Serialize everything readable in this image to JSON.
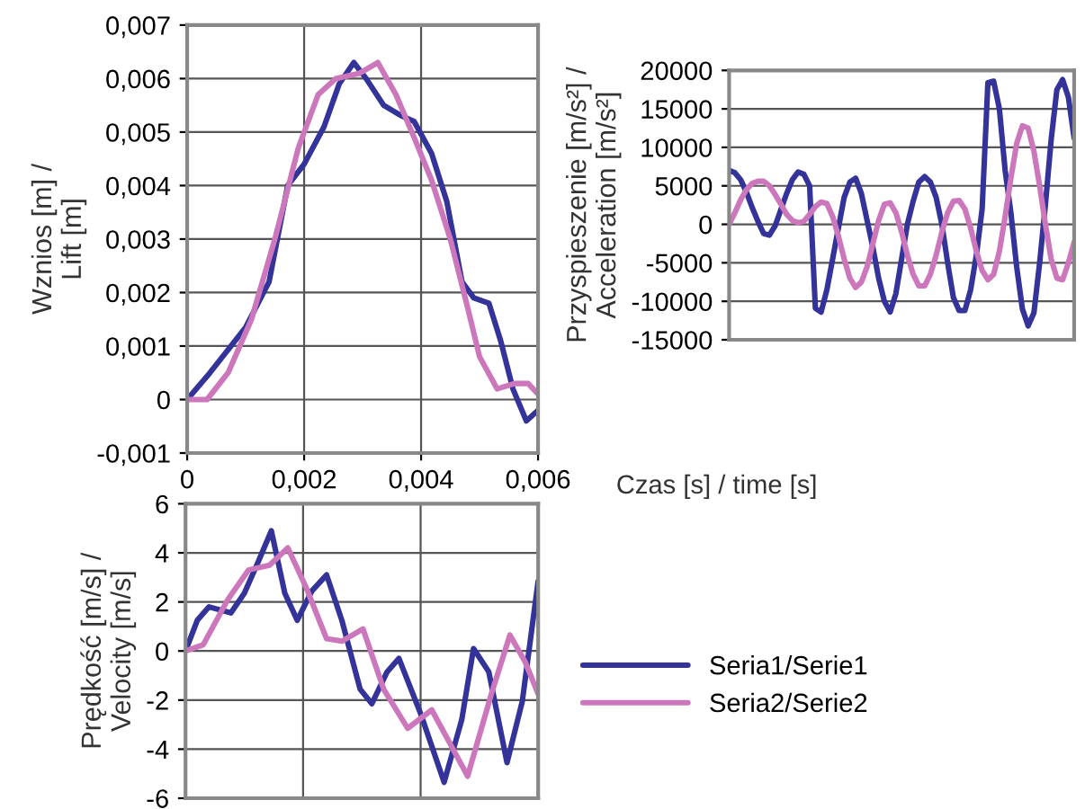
{
  "chart_data": [
    {
      "type": "line",
      "ylabel": "Wznios [m] /\nLift [m]",
      "grid": true,
      "xlim": [
        0,
        0.006
      ],
      "xticks": [
        0,
        {
          "value": 0.002,
          "label": "0,002"
        },
        {
          "value": 0.004,
          "label": "0,004"
        },
        {
          "value": 0.006,
          "label": "0,006"
        }
      ],
      "ylim": [
        -0.001,
        0.007
      ],
      "yticks": [
        {
          "value": -0.001,
          "label": "-0,001"
        },
        0,
        {
          "value": 0.001,
          "label": "0,001"
        },
        {
          "value": 0.002,
          "label": "0,002"
        },
        {
          "value": 0.003,
          "label": "0,003"
        },
        {
          "value": 0.004,
          "label": "0,004"
        },
        {
          "value": 0.005,
          "label": "0,005"
        },
        {
          "value": 0.006,
          "label": "0,006"
        },
        {
          "value": 0.007,
          "label": "0,007"
        }
      ],
      "series": [
        {
          "color": "#333399",
          "x": [
            0,
            0.00039,
            0.001,
            0.0014,
            0.00172,
            0.002,
            0.00234,
            0.0026,
            0.00285,
            0.00306,
            0.00336,
            0.00367,
            0.00388,
            0.00418,
            0.00444,
            0.0047,
            0.0049,
            0.00516,
            0.00536,
            0.00557,
            0.0058,
            0.006
          ],
          "values": [
            0,
            0.0005,
            0.00135,
            0.0022,
            0.004,
            0.0044,
            0.0051,
            0.0059,
            0.0063,
            0.006,
            0.0055,
            0.0053,
            0.0052,
            0.0046,
            0.0037,
            0.0022,
            0.0019,
            0.0018,
            0.0011,
            0.0002,
            -0.0004,
            -0.0002
          ]
        },
        {
          "color": "#cc77bb",
          "x": [
            0,
            0.00034,
            0.0007,
            0.0011,
            0.0015,
            0.0019,
            0.00224,
            0.00254,
            0.00295,
            0.00326,
            0.00357,
            0.00388,
            0.00418,
            0.0045,
            0.0048,
            0.005,
            0.0053,
            0.0056,
            0.00583,
            0.006
          ],
          "values": [
            0,
            0,
            0.0005,
            0.0015,
            0.003,
            0.0047,
            0.0057,
            0.006,
            0.0061,
            0.0063,
            0.0057,
            0.0049,
            0.0041,
            0.003,
            0.0017,
            0.0008,
            0.0002,
            0.0003,
            0.0003,
            0.0001
          ]
        }
      ]
    },
    {
      "type": "line",
      "xlabel": "Czas [s] / time [s]",
      "ylabel": "Przyspieszenie [m/s²] /\nAcceleration [m/s²]",
      "grid": "y",
      "tick_labels": "y",
      "categories": [
        null,
        null,
        null,
        null,
        null,
        null,
        null,
        null,
        null,
        null,
        null,
        null,
        null,
        null,
        null,
        null,
        null,
        null,
        null,
        null,
        null,
        null,
        null,
        null,
        null,
        null,
        null,
        null,
        null,
        null,
        null,
        null,
        null,
        null,
        null,
        null,
        null,
        null,
        null,
        null,
        null,
        null,
        null,
        null,
        null,
        null,
        null,
        null,
        null,
        null,
        null,
        null,
        null,
        null,
        null,
        null,
        null,
        null,
        null,
        null,
        null
      ],
      "ylim": [
        -15000,
        20000
      ],
      "yticks": [
        -15000,
        -10000,
        -5000,
        0,
        5000,
        10000,
        15000,
        20000
      ],
      "series": [
        {
          "color": "#333399",
          "values": [
            7000,
            6700,
            5800,
            4200,
            2200,
            400,
            -1200,
            -1400,
            -200,
            1900,
            4000,
            5800,
            6800,
            6500,
            5000,
            -10900,
            -11400,
            -8500,
            -4500,
            -500,
            3500,
            5500,
            6000,
            4000,
            500,
            -3000,
            -7000,
            -10000,
            -11400,
            -9000,
            -4500,
            0,
            3000,
            5500,
            6200,
            5500,
            3500,
            0,
            -5000,
            -9500,
            -11200,
            -11200,
            -8500,
            -4000,
            2000,
            18400,
            18600,
            15000,
            7000,
            1500,
            -5500,
            -11000,
            -13200,
            -11500,
            -5000,
            2500,
            11000,
            17500,
            18800,
            16500,
            11200
          ]
        },
        {
          "color": "#cc77bb",
          "values": [
            0,
            1500,
            3200,
            4500,
            5300,
            5600,
            5600,
            5000,
            3900,
            2600,
            1300,
            500,
            200,
            400,
            1300,
            2300,
            2900,
            2700,
            1000,
            -1500,
            -4500,
            -7000,
            -8200,
            -7500,
            -5500,
            -2500,
            500,
            2600,
            2800,
            1500,
            -1000,
            -4000,
            -6500,
            -8000,
            -8000,
            -6500,
            -4000,
            -1000,
            1500,
            3000,
            3100,
            2000,
            -500,
            -3500,
            -6000,
            -7200,
            -6500,
            -3500,
            1000,
            6000,
            10500,
            12800,
            12500,
            9500,
            5000,
            0,
            -4500,
            -7000,
            -7200,
            -5000,
            -2300
          ]
        }
      ]
    },
    {
      "type": "line",
      "ylabel": "Prędkość [m/s] /\nVelocity [m/s]",
      "grid": true,
      "tick_labels": "y",
      "legend": "right",
      "xlim": [
        0,
        0.006
      ],
      "xticks": [
        {
          "value": 0,
          "label": null
        },
        {
          "value": 0.002,
          "label": null
        },
        {
          "value": 0.004,
          "label": null
        },
        {
          "value": 0.006,
          "label": null
        }
      ],
      "ylim": [
        -6,
        6
      ],
      "yticks": [
        -6,
        -4,
        -2,
        0,
        2,
        4,
        6
      ],
      "series": [
        {
          "name": "Seria1/Serie1",
          "color": "#333399",
          "x": [
            0,
            0.0002,
            0.0004,
            0.00077,
            0.001,
            0.00123,
            0.00146,
            0.00169,
            0.0019,
            0.00215,
            0.0024,
            0.00266,
            0.00297,
            0.00317,
            0.00343,
            0.00363,
            0.004,
            0.0044,
            0.0047,
            0.0049,
            0.00516,
            0.00547,
            0.00573,
            0.006
          ],
          "values": [
            0,
            1.25,
            1.8,
            1.55,
            2.35,
            3.6,
            4.9,
            2.35,
            1.25,
            2.45,
            3.1,
            1.25,
            -1.55,
            -2.15,
            -0.85,
            -0.3,
            -2.55,
            -5.35,
            -2.8,
            0.1,
            -0.85,
            -4.55,
            -2.05,
            2.85
          ]
        },
        {
          "name": "Seria2/Serie2",
          "color": "#cc77bb",
          "x": [
            0,
            0.0003,
            0.00072,
            0.00107,
            0.00143,
            0.00174,
            0.00205,
            0.0024,
            0.00266,
            0.00302,
            0.00337,
            0.00378,
            0.00419,
            0.0048,
            0.00521,
            0.00552,
            0.00578,
            0.006
          ],
          "values": [
            0,
            0.25,
            2.1,
            3.3,
            3.5,
            4.2,
            2.6,
            0.5,
            0.4,
            0.9,
            -1.55,
            -3.15,
            -2.4,
            -5.1,
            -1.7,
            0.65,
            -0.45,
            -1.75
          ]
        }
      ]
    }
  ]
}
